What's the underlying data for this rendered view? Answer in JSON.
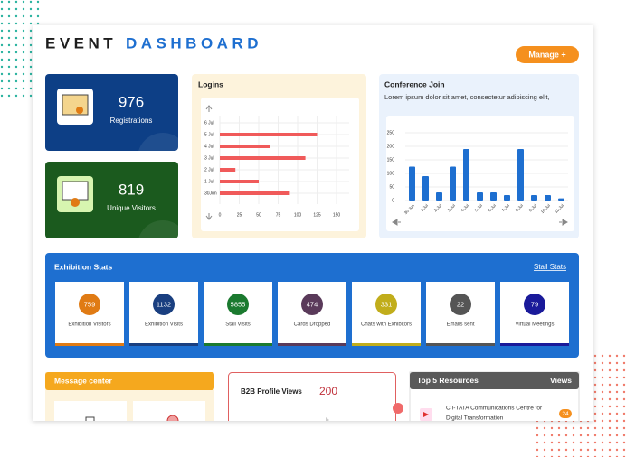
{
  "header": {
    "title_part1": "EVENT",
    "title_part2": "DASHBOARD",
    "button": "Manage +"
  },
  "stats": [
    {
      "value": 976,
      "label": "Registrations"
    },
    {
      "value": 819,
      "label": "Unique Visitors"
    }
  ],
  "chart_data": [
    {
      "type": "hbar",
      "title": "Logins",
      "categories": [
        "6 Jul",
        "5 Jul",
        "4 Jul",
        "3 Jul",
        "2 Jul",
        "1 Jul",
        "30Jun"
      ],
      "values": [
        0,
        125,
        65,
        110,
        20,
        50,
        90
      ],
      "color": "#f05a5a",
      "xlim": [
        0,
        150
      ],
      "xticks": [
        0,
        25,
        50,
        75,
        100,
        125,
        150
      ],
      "grid": true
    },
    {
      "type": "bar",
      "title": "Conference Join",
      "subtitle": "Lorem ipsum dolor sit amet, consectetur adipiscing elit,",
      "categories": [
        "30-Jun",
        "1-Jul",
        "2-Jul",
        "3-Jul",
        "4-Jul",
        "5-Jul",
        "6-Jul",
        "7-Jul",
        "8-Jul",
        "9-Jul",
        "10-Jul",
        "11-Jul"
      ],
      "values": [
        125,
        90,
        30,
        125,
        190,
        30,
        30,
        20,
        190,
        20,
        20,
        8
      ],
      "color": "#1e6fd0",
      "ylim": [
        0,
        250
      ],
      "yticks": [
        0,
        50,
        100,
        150,
        200,
        250
      ],
      "grid": true
    }
  ],
  "exhibition": {
    "title": "Exhibition Stats",
    "link": "Stall Stats",
    "tiles": [
      {
        "value": 759,
        "label": "Exhibition Visitors",
        "color": "#e07b14"
      },
      {
        "value": 1132,
        "label": "Exhibition Visits",
        "color": "#1a3f80"
      },
      {
        "value": 5855,
        "label": "Stall Visits",
        "color": "#1b7a2f"
      },
      {
        "value": 474,
        "label": "Cards Dropped",
        "color": "#5a3a5a"
      },
      {
        "value": 331,
        "label": "Chats with Exhibitors",
        "color": "#c1ad1b"
      },
      {
        "value": 22,
        "label": "Emails sent",
        "color": "#555555"
      },
      {
        "value": 79,
        "label": "Virtual Meetings",
        "color": "#1a1a9a"
      }
    ]
  },
  "message_center": {
    "title": "Message center"
  },
  "b2b": {
    "title": "B2B Profile Views",
    "value": 200
  },
  "resources": {
    "title": "Top 5 Resources",
    "column": "Views",
    "items": [
      {
        "lines": [
          "CII-TATA Communications Centre for",
          "Digital Transformation"
        ],
        "views": 24
      }
    ]
  }
}
